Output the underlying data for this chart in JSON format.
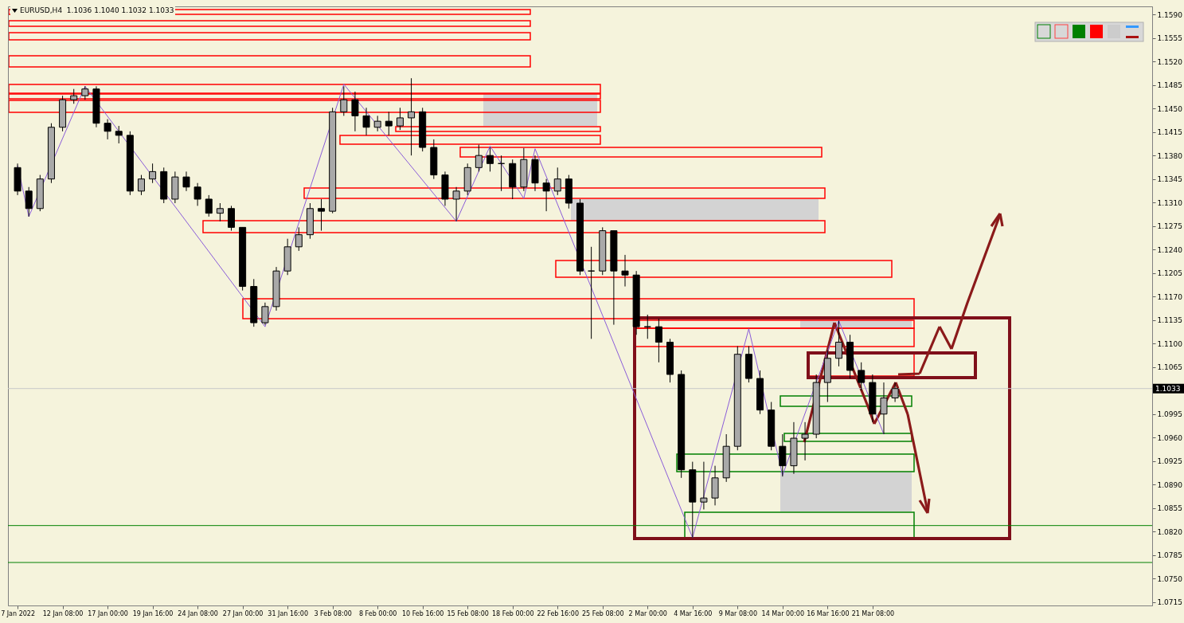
{
  "chart_data": {
    "type": "candlestick",
    "title": "EURUSD,H4  1.1036 1.1040 1.1032 1.1033",
    "categories": [
      "7 Jan 2022",
      null,
      null,
      null,
      "12 Jan 08:00",
      null,
      null,
      null,
      "17 Jan 00:00",
      null,
      null,
      null,
      "19 Jan 16:00",
      null,
      null,
      null,
      "24 Jan 08:00",
      null,
      null,
      null,
      "27 Jan 00:00",
      null,
      null,
      null,
      "31 Jan 16:00",
      null,
      null,
      null,
      "3 Feb 08:00",
      null,
      null,
      null,
      "8 Feb 00:00",
      null,
      null,
      null,
      "10 Feb 16:00",
      null,
      null,
      null,
      "15 Feb 08:00",
      null,
      null,
      null,
      "18 Feb 00:00",
      null,
      null,
      null,
      "22 Feb 16:00",
      null,
      null,
      null,
      "25 Feb 08:00",
      null,
      null,
      null,
      "2 Mar 00:00",
      null,
      null,
      null,
      "4 Mar 16:00",
      null,
      null,
      null,
      "9 Mar 08:00",
      null,
      null,
      null,
      "14 Mar 00:00",
      null,
      null,
      null,
      "16 Mar 16:00",
      null,
      null,
      null,
      "21 Mar 08:00",
      null,
      null,
      null,
      null,
      null,
      null,
      null,
      null,
      null,
      null,
      null,
      null,
      null,
      null,
      null,
      null,
      null,
      null,
      null,
      null,
      null,
      null,
      null,
      null
    ],
    "ohlc": [
      [
        1.1362,
        1.1368,
        1.1321,
        1.1327
      ],
      [
        1.1327,
        1.1333,
        1.1289,
        1.1301
      ],
      [
        1.1301,
        1.1351,
        1.1297,
        1.1345
      ],
      [
        1.1345,
        1.1428,
        1.1339,
        1.1422
      ],
      [
        1.1422,
        1.1469,
        1.1416,
        1.1463
      ],
      [
        1.1463,
        1.1479,
        1.1457,
        1.1469
      ],
      [
        1.1469,
        1.1483,
        1.1463,
        1.1479
      ],
      [
        1.1479,
        1.1483,
        1.1422,
        1.1428
      ],
      [
        1.1428,
        1.1434,
        1.1404,
        1.1416
      ],
      [
        1.1416,
        1.1424,
        1.1398,
        1.141
      ],
      [
        1.141,
        1.1416,
        1.1321,
        1.1327
      ],
      [
        1.1327,
        1.1351,
        1.1321,
        1.1345
      ],
      [
        1.1345,
        1.1368,
        1.1339,
        1.1356
      ],
      [
        1.1356,
        1.1362,
        1.1309,
        1.1315
      ],
      [
        1.1315,
        1.1356,
        1.1309,
        1.1348
      ],
      [
        1.1348,
        1.1356,
        1.1327,
        1.1333
      ],
      [
        1.1333,
        1.1339,
        1.1305,
        1.1315
      ],
      [
        1.1315,
        1.1321,
        1.1289,
        1.1294
      ],
      [
        1.1294,
        1.1309,
        1.1282,
        1.1301
      ],
      [
        1.1301,
        1.1305,
        1.1268,
        1.1273
      ],
      [
        1.1273,
        1.1273,
        1.1179,
        1.1185
      ],
      [
        1.1185,
        1.1196,
        1.1125,
        1.1131
      ],
      [
        1.1131,
        1.1161,
        1.1128,
        1.1155
      ],
      [
        1.1155,
        1.1214,
        1.1149,
        1.1208
      ],
      [
        1.1208,
        1.1256,
        1.1202,
        1.1244
      ],
      [
        1.1244,
        1.1273,
        1.1238,
        1.1262
      ],
      [
        1.1262,
        1.1309,
        1.1256,
        1.1301
      ],
      [
        1.1301,
        1.1315,
        1.1268,
        1.1297
      ],
      [
        1.1297,
        1.1451,
        1.1294,
        1.1445
      ],
      [
        1.1445,
        1.1483,
        1.1439,
        1.1463
      ],
      [
        1.1463,
        1.1475,
        1.1416,
        1.1439
      ],
      [
        1.1439,
        1.1451,
        1.141,
        1.1422
      ],
      [
        1.1422,
        1.1439,
        1.1416,
        1.1431
      ],
      [
        1.1431,
        1.1445,
        1.141,
        1.1424
      ],
      [
        1.1424,
        1.1451,
        1.1418,
        1.1436
      ],
      [
        1.1436,
        1.1495,
        1.138,
        1.1445
      ],
      [
        1.1445,
        1.1451,
        1.1386,
        1.1392
      ],
      [
        1.1392,
        1.1404,
        1.1345,
        1.1351
      ],
      [
        1.1351,
        1.1356,
        1.1305,
        1.1315
      ],
      [
        1.1315,
        1.1333,
        1.1282,
        1.1327
      ],
      [
        1.1327,
        1.1368,
        1.1321,
        1.1362
      ],
      [
        1.1362,
        1.1396,
        1.1356,
        1.138
      ],
      [
        1.138,
        1.1392,
        1.1356,
        1.1368
      ],
      [
        1.1368,
        1.138,
        1.1327,
        1.1368
      ],
      [
        1.1368,
        1.1374,
        1.1315,
        1.1333
      ],
      [
        1.1333,
        1.1391,
        1.1327,
        1.1374
      ],
      [
        1.1374,
        1.138,
        1.1327,
        1.1339
      ],
      [
        1.1339,
        1.1345,
        1.1297,
        1.1327
      ],
      [
        1.1327,
        1.1362,
        1.1321,
        1.1345
      ],
      [
        1.1345,
        1.1351,
        1.1301,
        1.1309
      ],
      [
        1.1309,
        1.1315,
        1.1202,
        1.1208
      ],
      [
        1.1208,
        1.1244,
        1.1107,
        1.1208
      ],
      [
        1.1208,
        1.1273,
        1.1202,
        1.1268
      ],
      [
        1.1268,
        1.1268,
        1.1128,
        1.1208
      ],
      [
        1.1208,
        1.1232,
        1.1185,
        1.1202
      ],
      [
        1.1202,
        1.1208,
        1.1113,
        1.1125
      ],
      [
        1.1125,
        1.1143,
        1.1107,
        1.1125
      ],
      [
        1.1125,
        1.1137,
        1.1072,
        1.1102
      ],
      [
        1.1102,
        1.1107,
        1.1042,
        1.1054
      ],
      [
        1.1054,
        1.106,
        1.09,
        1.0912
      ],
      [
        1.0912,
        1.0924,
        1.0811,
        1.0864
      ],
      [
        1.0864,
        1.0924,
        1.0853,
        1.087
      ],
      [
        1.087,
        1.0918,
        1.0859,
        1.09
      ],
      [
        1.09,
        1.0965,
        1.0894,
        1.0947
      ],
      [
        1.0947,
        1.1096,
        1.0941,
        1.1084
      ],
      [
        1.1084,
        1.1096,
        1.1042,
        1.1048
      ],
      [
        1.1048,
        1.106,
        1.0995,
        1.1001
      ],
      [
        1.1001,
        1.1013,
        1.0941,
        1.0947
      ],
      [
        1.0947,
        1.0965,
        1.0902,
        1.0918
      ],
      [
        1.0918,
        1.0983,
        1.0906,
        1.0959
      ],
      [
        1.0959,
        1.0983,
        1.0926,
        1.0965
      ],
      [
        1.0965,
        1.1054,
        1.0959,
        1.1042
      ],
      [
        1.1042,
        1.109,
        1.1013,
        1.1078
      ],
      [
        1.1078,
        1.1134,
        1.1066,
        1.1102
      ],
      [
        1.1102,
        1.1113,
        1.1048,
        1.106
      ],
      [
        1.106,
        1.1072,
        1.103,
        1.1042
      ],
      [
        1.1042,
        1.1054,
        1.0983,
        1.0995
      ],
      [
        1.0995,
        1.1042,
        1.0965,
        1.1019
      ],
      [
        1.1019,
        1.1042,
        1.1013,
        1.1033
      ],
      null,
      null,
      null,
      null,
      null,
      null,
      null,
      null,
      null,
      null,
      null,
      null,
      null,
      null,
      null,
      null,
      null,
      null,
      null,
      null,
      null,
      null
    ],
    "series": [
      {
        "type": "line",
        "color": "#8a5cd8",
        "values": [
          1.1365,
          1.1289,
          null,
          null,
          null,
          null,
          1.1483,
          null,
          null,
          null,
          null,
          null,
          null,
          null,
          null,
          null,
          null,
          null,
          null,
          null,
          null,
          null,
          1.1125,
          null,
          null,
          null,
          null,
          null,
          null,
          1.1486,
          null,
          null,
          null,
          null,
          null,
          null,
          null,
          null,
          null,
          1.1282,
          null,
          null,
          1.1394,
          null,
          null,
          1.1316,
          1.139,
          null,
          null,
          null,
          null,
          null,
          null,
          null,
          null,
          null,
          null,
          null,
          null,
          null,
          1.0811,
          null,
          null,
          null,
          null,
          1.1122,
          null,
          null,
          1.0904,
          null,
          null,
          null,
          null,
          1.1134,
          null,
          null,
          null,
          1.0965,
          null,
          null,
          null,
          null,
          null,
          null,
          null,
          null,
          null,
          null,
          null,
          null,
          null,
          null,
          null,
          null,
          null,
          null,
          null,
          null,
          null,
          null,
          null
        ]
      }
    ],
    "ylim": [
      1.071,
      1.1602
    ],
    "yticks": [
      1.0715,
      {
        "value": 1.075,
        "label": "1.0750"
      },
      1.0785,
      {
        "value": 1.082,
        "label": "1.0820"
      },
      1.0855,
      {
        "value": 1.089,
        "label": "1.0890"
      },
      1.0925,
      {
        "value": 1.096,
        "label": "1.0960"
      },
      1.0995,
      {
        "value": 1.103,
        "label": null
      },
      1.1065,
      {
        "value": 1.11,
        "label": "1.1100"
      },
      1.1135,
      {
        "value": 1.117,
        "label": "1.1170"
      },
      1.1205,
      {
        "value": 1.124,
        "label": "1.1240"
      },
      1.1275,
      {
        "value": 1.131,
        "label": "1.1310"
      },
      1.1345,
      {
        "value": 1.138,
        "label": "1.1380"
      },
      1.1415,
      {
        "value": 1.145,
        "label": "1.1450"
      },
      1.1485,
      {
        "value": 1.152,
        "label": "1.1520"
      },
      1.1555,
      {
        "value": 1.159,
        "label": "1.1590"
      }
    ],
    "ref_lines": [
      {
        "axis": "y",
        "value": 1.1033,
        "label": "1.1033",
        "color": "#c8c8c8"
      },
      {
        "axis": "y",
        "value": 1.0829,
        "color": "#008000"
      },
      {
        "axis": "y",
        "value": 1.0774,
        "color": "#008000"
      }
    ]
  }
}
